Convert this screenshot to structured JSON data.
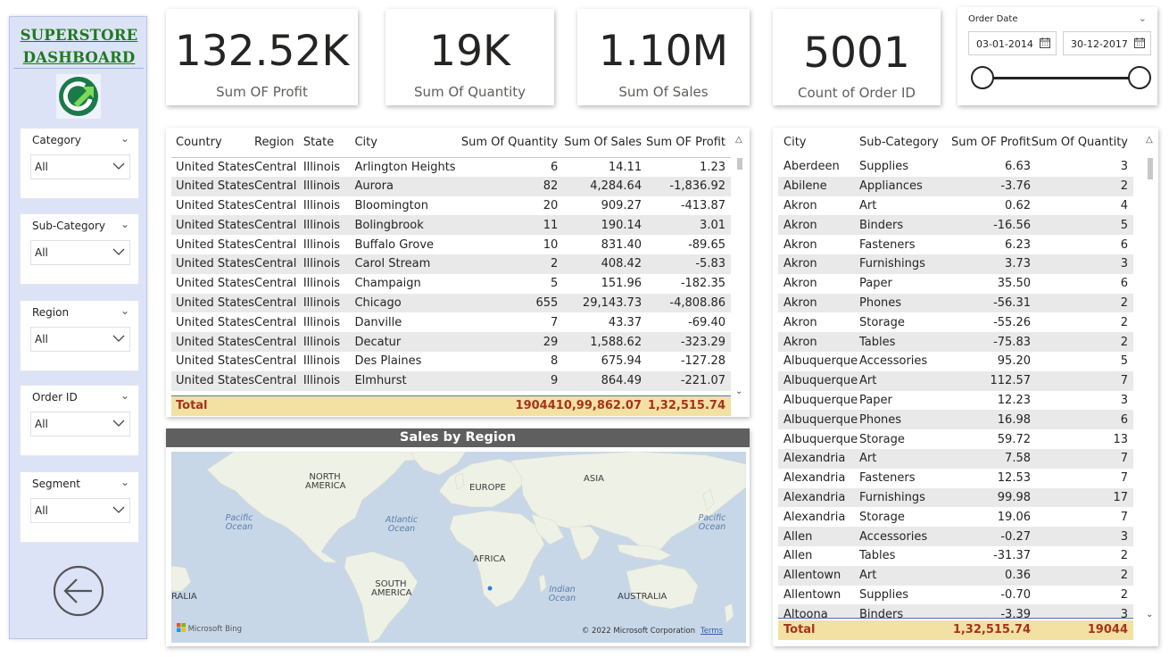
{
  "sidebar": {
    "title_line1": "SUPERSTORE",
    "title_line2": "DASHBOARD",
    "slicers": [
      {
        "label": "Category",
        "value": "All"
      },
      {
        "label": "Sub-Category",
        "value": "All"
      },
      {
        "label": "Region",
        "value": "All"
      },
      {
        "label": "Order ID",
        "value": "All"
      },
      {
        "label": "Segment",
        "value": "All"
      }
    ]
  },
  "kpis": [
    {
      "value": "132.52K",
      "label": "Sum OF Profit"
    },
    {
      "value": "19K",
      "label": "Sum Of Quantity"
    },
    {
      "value": "1.10M",
      "label": "Sum Of Sales"
    },
    {
      "value": "5001",
      "label": "Count of Order ID"
    }
  ],
  "date_slicer": {
    "title": "Order Date",
    "start": "03-01-2014",
    "end": "30-12-2017"
  },
  "left_table": {
    "headers": [
      "Country",
      "Region",
      "State",
      "City",
      "Sum Of Quantity",
      "Sum Of Sales",
      "Sum OF Profit"
    ],
    "rows": [
      [
        "United States",
        "Central",
        "Illinois",
        "Arlington Heights",
        "6",
        "14.11",
        "1.23"
      ],
      [
        "United States",
        "Central",
        "Illinois",
        "Aurora",
        "82",
        "4,284.64",
        "-1,836.92"
      ],
      [
        "United States",
        "Central",
        "Illinois",
        "Bloomington",
        "20",
        "909.27",
        "-413.87"
      ],
      [
        "United States",
        "Central",
        "Illinois",
        "Bolingbrook",
        "11",
        "190.14",
        "3.01"
      ],
      [
        "United States",
        "Central",
        "Illinois",
        "Buffalo Grove",
        "10",
        "831.40",
        "-89.65"
      ],
      [
        "United States",
        "Central",
        "Illinois",
        "Carol Stream",
        "2",
        "408.42",
        "-5.83"
      ],
      [
        "United States",
        "Central",
        "Illinois",
        "Champaign",
        "5",
        "151.96",
        "-182.35"
      ],
      [
        "United States",
        "Central",
        "Illinois",
        "Chicago",
        "655",
        "29,143.73",
        "-4,808.86"
      ],
      [
        "United States",
        "Central",
        "Illinois",
        "Danville",
        "7",
        "43.37",
        "-69.40"
      ],
      [
        "United States",
        "Central",
        "Illinois",
        "Decatur",
        "29",
        "1,588.62",
        "-323.29"
      ],
      [
        "United States",
        "Central",
        "Illinois",
        "Des Plaines",
        "8",
        "675.94",
        "-127.28"
      ],
      [
        "United States",
        "Central",
        "Illinois",
        "Elmhurst",
        "9",
        "864.49",
        "-221.07"
      ]
    ],
    "total": {
      "label": "Total",
      "quantity": "19044",
      "sales": "10,99,862.07",
      "profit": "1,32,515.74"
    }
  },
  "right_table": {
    "headers": [
      "City",
      "Sub-Category",
      "Sum OF Profit",
      "Sum Of Quantity"
    ],
    "rows": [
      [
        "Aberdeen",
        "Supplies",
        "6.63",
        "3"
      ],
      [
        "Abilene",
        "Appliances",
        "-3.76",
        "2"
      ],
      [
        "Akron",
        "Art",
        "0.62",
        "4"
      ],
      [
        "Akron",
        "Binders",
        "-16.56",
        "5"
      ],
      [
        "Akron",
        "Fasteners",
        "6.23",
        "6"
      ],
      [
        "Akron",
        "Furnishings",
        "3.73",
        "3"
      ],
      [
        "Akron",
        "Paper",
        "35.50",
        "6"
      ],
      [
        "Akron",
        "Phones",
        "-56.31",
        "2"
      ],
      [
        "Akron",
        "Storage",
        "-55.26",
        "2"
      ],
      [
        "Akron",
        "Tables",
        "-75.83",
        "2"
      ],
      [
        "Albuquerque",
        "Accessories",
        "95.20",
        "5"
      ],
      [
        "Albuquerque",
        "Art",
        "112.57",
        "7"
      ],
      [
        "Albuquerque",
        "Paper",
        "12.23",
        "3"
      ],
      [
        "Albuquerque",
        "Phones",
        "16.98",
        "6"
      ],
      [
        "Albuquerque",
        "Storage",
        "59.72",
        "13"
      ],
      [
        "Alexandria",
        "Art",
        "7.58",
        "7"
      ],
      [
        "Alexandria",
        "Fasteners",
        "12.53",
        "7"
      ],
      [
        "Alexandria",
        "Furnishings",
        "99.98",
        "17"
      ],
      [
        "Alexandria",
        "Storage",
        "19.06",
        "7"
      ],
      [
        "Allen",
        "Accessories",
        "-0.27",
        "3"
      ],
      [
        "Allen",
        "Tables",
        "-31.37",
        "2"
      ],
      [
        "Allentown",
        "Art",
        "0.36",
        "2"
      ],
      [
        "Allentown",
        "Supplies",
        "-0.70",
        "2"
      ],
      [
        "Altoona",
        "Binders",
        "-3.39",
        "3"
      ]
    ],
    "total": {
      "label": "Total",
      "profit": "1,32,515.74",
      "quantity": "19044"
    }
  },
  "map": {
    "title": "Sales by Region",
    "labels": {
      "north_america_1": "NORTH",
      "north_america_2": "AMERICA",
      "europe": "EUROPE",
      "asia": "ASIA",
      "africa": "AFRICA",
      "south_america_1": "SOUTH",
      "south_america_2": "AMERICA",
      "australia": "AUSTRALIA",
      "australia_left": "RALIA",
      "pacific_left_1": "Pacific",
      "pacific_left_2": "Ocean",
      "atlantic_1": "Atlantic",
      "atlantic_2": "Ocean",
      "pacific_right_1": "Pacific",
      "pacific_right_2": "Ocean",
      "indian_1": "Indian",
      "indian_2": "Ocean"
    },
    "bing": "Microsoft Bing",
    "copyright": "© 2022 Microsoft Corporation",
    "terms": "Terms"
  },
  "colors": {
    "sidebar_bg": "#dde3f7",
    "brand_green": "#1f7a1f",
    "total_bg": "#f2e1a2",
    "total_text": "#a8321e",
    "zebra": "#e9e9e9"
  }
}
